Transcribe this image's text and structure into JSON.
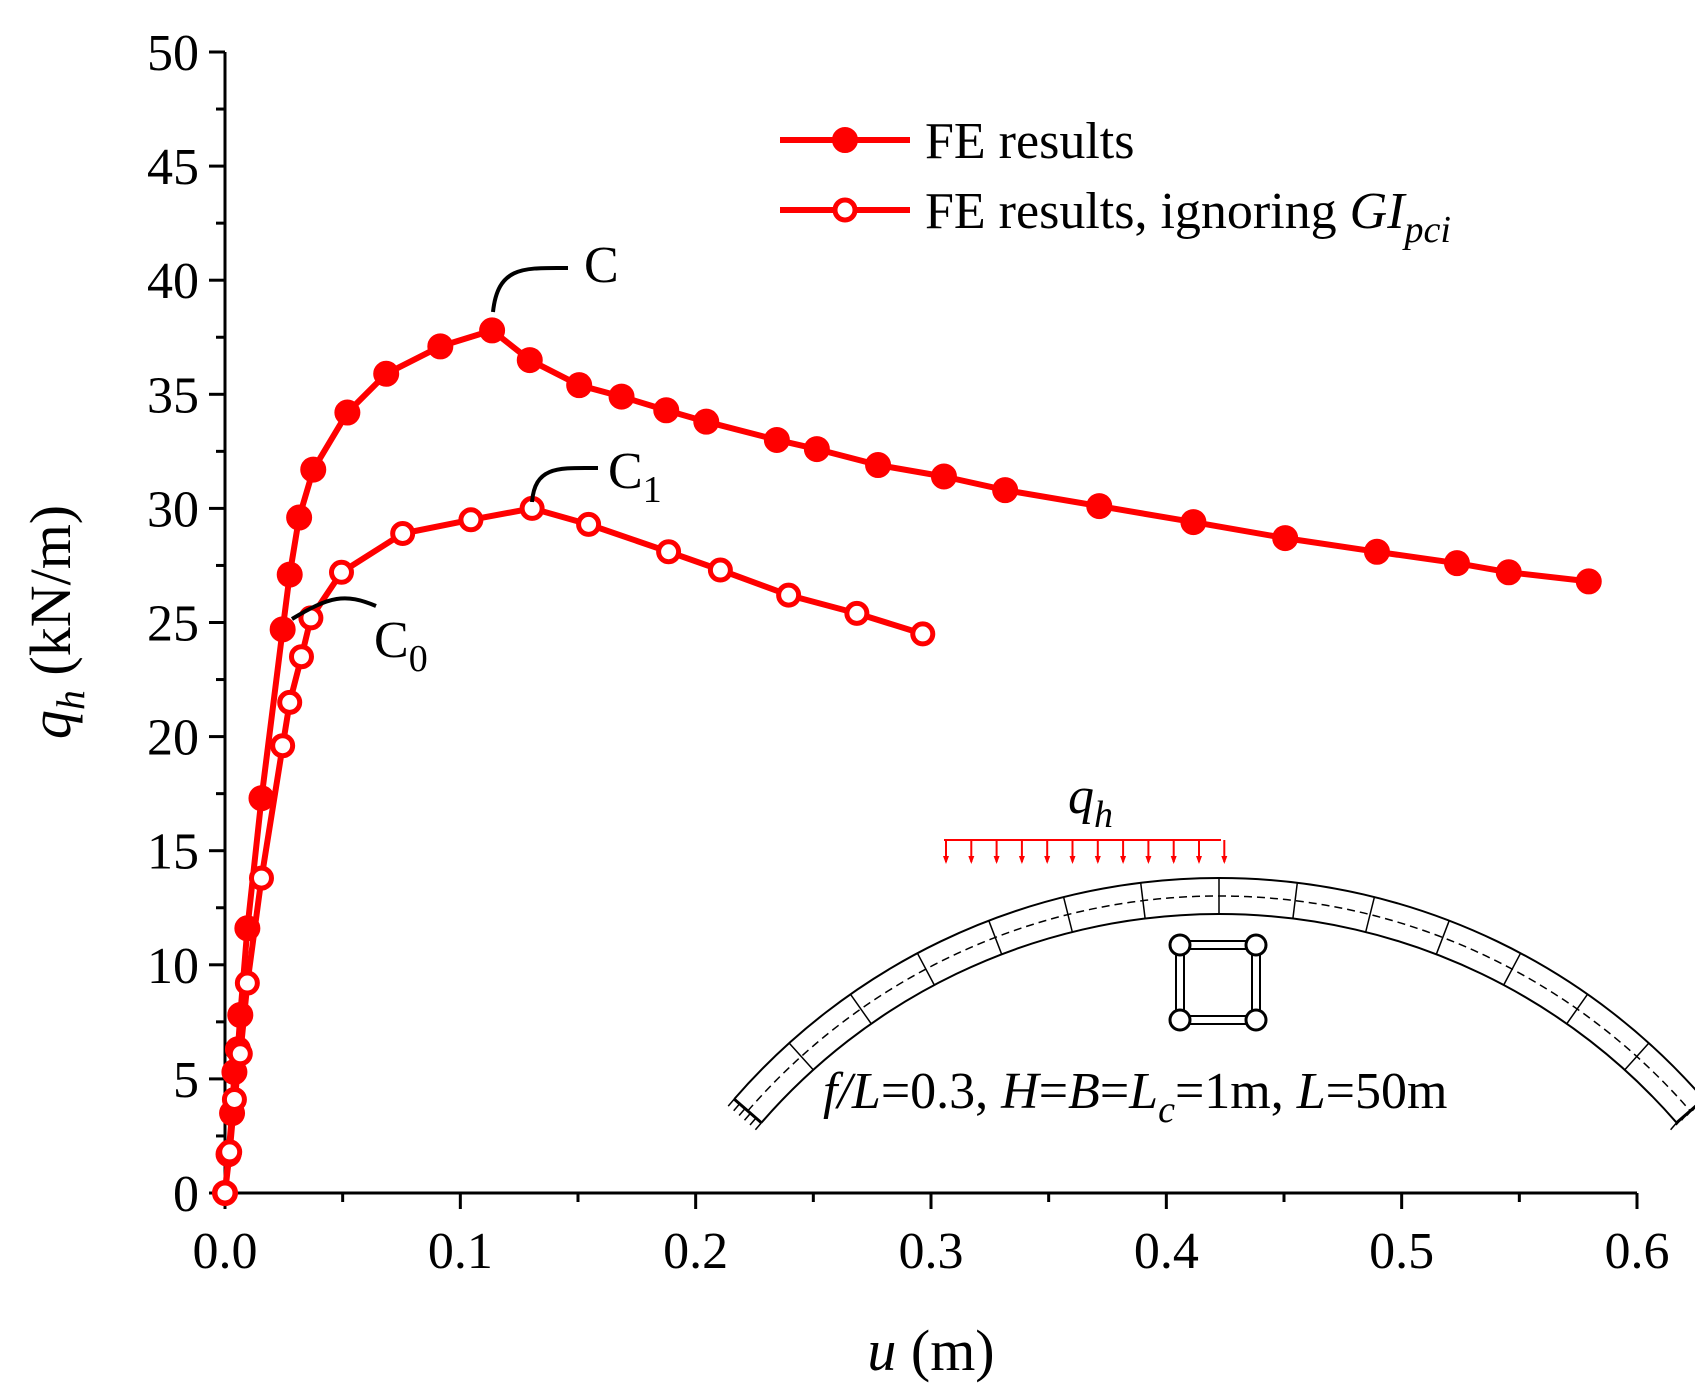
{
  "chart_data": {
    "type": "line",
    "xlabel": {
      "var": "u",
      "unit": " (m)"
    },
    "ylabel": {
      "var": "q",
      "sub": "h",
      "unit": " (kN/m)"
    },
    "xlim": [
      0,
      0.6
    ],
    "ylim": [
      0,
      50
    ],
    "x_ticks": [
      0.0,
      0.1,
      0.2,
      0.3,
      0.4,
      0.5,
      0.6
    ],
    "x_tick_labels": [
      "0.0",
      "0.1",
      "0.2",
      "0.3",
      "0.4",
      "0.5",
      "0.6"
    ],
    "y_ticks": [
      0,
      5,
      10,
      15,
      20,
      25,
      30,
      35,
      40,
      45,
      50
    ],
    "y_tick_labels": [
      "0",
      "5",
      "10",
      "15",
      "20",
      "25",
      "30",
      "35",
      "40",
      "45",
      "50"
    ],
    "color": "#ff0000",
    "series": [
      {
        "name": "FE results",
        "marker": "filled-circle",
        "x": [
          0.0,
          0.0015,
          0.003,
          0.004,
          0.0055,
          0.0065,
          0.0095,
          0.0155,
          0.0245,
          0.0275,
          0.0315,
          0.0375,
          0.052,
          0.0685,
          0.0915,
          0.1135,
          0.1295,
          0.1505,
          0.1685,
          0.1875,
          0.2045,
          0.2345,
          0.2515,
          0.2775,
          0.3055,
          0.3315,
          0.3715,
          0.4115,
          0.4505,
          0.4895,
          0.5235,
          0.5455,
          0.5795
        ],
        "y": [
          0.0,
          1.7,
          3.5,
          5.3,
          6.3,
          7.8,
          11.6,
          17.3,
          24.7,
          27.1,
          29.6,
          31.7,
          34.2,
          35.9,
          37.1,
          37.8,
          36.5,
          35.4,
          34.9,
          34.3,
          33.8,
          33.0,
          32.6,
          31.9,
          31.4,
          30.8,
          30.1,
          29.4,
          28.7,
          28.1,
          27.6,
          27.2,
          26.8
        ]
      },
      {
        "name": "FE results, ignoring ",
        "name_italic": "GI",
        "name_sub": "pci",
        "marker": "open-circle",
        "x": [
          0.0,
          0.002,
          0.004,
          0.0065,
          0.0095,
          0.0155,
          0.0245,
          0.0275,
          0.0325,
          0.0365,
          0.0495,
          0.0755,
          0.1045,
          0.1305,
          0.1545,
          0.1885,
          0.2105,
          0.2395,
          0.2685,
          0.2965
        ],
        "y": [
          0.0,
          1.8,
          4.1,
          6.1,
          9.2,
          13.8,
          19.6,
          21.5,
          23.5,
          25.2,
          27.2,
          28.9,
          29.5,
          30.0,
          29.3,
          28.1,
          27.3,
          26.2,
          25.4,
          24.5
        ]
      }
    ],
    "annotations": [
      {
        "label": "C",
        "sub": "",
        "point": [
          0.1135,
          37.8
        ]
      },
      {
        "label": "C",
        "sub": "1",
        "point": [
          0.1305,
          30.0
        ]
      },
      {
        "label": "C",
        "sub": "0",
        "point": [
          0.0245,
          24.7
        ]
      }
    ],
    "inset": {
      "load_label": "q",
      "load_sub": "h",
      "caption": [
        {
          "t": "f/L",
          "i": true
        },
        {
          "t": "=0.3, ",
          "i": false
        },
        {
          "t": "H",
          "i": true
        },
        {
          "t": "=",
          "i": false
        },
        {
          "t": "B",
          "i": true
        },
        {
          "t": "=",
          "i": false
        },
        {
          "t": "L",
          "i": true
        },
        {
          "t": "c",
          "i": true,
          "sub": true
        },
        {
          "t": "=1m, ",
          "i": false
        },
        {
          "t": "L",
          "i": true
        },
        {
          "t": "=50m",
          "i": false
        }
      ]
    }
  }
}
